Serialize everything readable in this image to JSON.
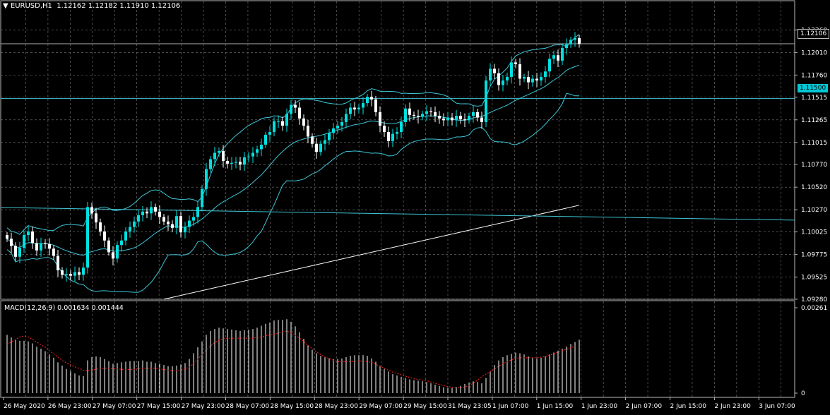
{
  "header": {
    "triangle": "▼",
    "symbol": "EURUSD,H1",
    "ohlc": "1.12162 1.12182 1.11910 1.12106"
  },
  "macd_header": "MACD(12,26,9) 0.001634 0.001444",
  "price_tags": {
    "bid": "1.12106",
    "level": "1.11500"
  },
  "colors": {
    "bg": "#000000",
    "grid": "#7a7a7a",
    "bull": "#00e0e0",
    "bear": "#ffffff",
    "bands": "#3ec6d6",
    "ma": "#ffffff",
    "signal": "#ff2020",
    "hist": "#ffffff"
  },
  "chart_data": [
    {
      "type": "candlestick",
      "symbol": "EURUSD",
      "timeframe": "H1",
      "ylim": [
        1.0928,
        1.1245
      ],
      "y_ticks": [
        "1.12260",
        "1.12010",
        "1.11760",
        "1.11515",
        "1.11265",
        "1.11015",
        "1.10770",
        "1.10520",
        "1.10270",
        "1.10025",
        "1.09775",
        "1.09525",
        "1.09280"
      ],
      "x_labels": [
        "26 May 2020",
        "26 May 23:00",
        "27 May 07:00",
        "27 May 15:00",
        "27 May 23:00",
        "28 May 07:00",
        "28 May 15:00",
        "28 May 23:00",
        "29 May 07:00",
        "29 May 15:00",
        "31 May 23:05",
        "1 Jun 07:00",
        "1 Jun 15:00",
        "1 Jun 23:00",
        "2 Jun 07:00",
        "2 Jun 15:00",
        "2 Jun 23:00",
        "3 Jun 07:00"
      ],
      "close": [
        1.0995,
        1.0987,
        1.0975,
        1.0985,
        1.0999,
        1.1003,
        1.099,
        1.0982,
        1.099,
        1.0989,
        1.0984,
        1.0976,
        1.096,
        1.0955,
        1.0956,
        1.0954,
        1.0958,
        1.0955,
        1.0963,
        1.103,
        1.1023,
        1.1013,
        1.1003,
        1.0993,
        1.098,
        1.0973,
        1.0988,
        1.0993,
        1.1003,
        1.1008,
        1.1014,
        1.1021,
        1.1025,
        1.1023,
        1.103,
        1.1025,
        1.1019,
        1.1014,
        1.1011,
        1.1007,
        1.102,
        1.1002,
        1.1008,
        1.1015,
        1.1019,
        1.103,
        1.105,
        1.1072,
        1.1083,
        1.109,
        1.1092,
        1.1081,
        1.1078,
        1.1079,
        1.108,
        1.1077,
        1.1085,
        1.1086,
        1.109,
        1.1094,
        1.1099,
        1.111,
        1.1113,
        1.1125,
        1.1125,
        1.112,
        1.1133,
        1.1143,
        1.114,
        1.1128,
        1.112,
        1.1108,
        1.11,
        1.1091,
        1.11,
        1.1104,
        1.1112,
        1.1117,
        1.112,
        1.1124,
        1.1133,
        1.114,
        1.1138,
        1.114,
        1.1145,
        1.1152,
        1.1149,
        1.1135,
        1.112,
        1.1113,
        1.1103,
        1.1111,
        1.1113,
        1.1124,
        1.1139,
        1.1132,
        1.1131,
        1.113,
        1.1133,
        1.1136,
        1.1135,
        1.1131,
        1.1128,
        1.1126,
        1.1129,
        1.1126,
        1.1131,
        1.1127,
        1.1126,
        1.1131,
        1.1135,
        1.1129,
        1.1124,
        1.117,
        1.1183,
        1.1178,
        1.1165,
        1.117,
        1.1174,
        1.119,
        1.1188,
        1.1172,
        1.1174,
        1.1168,
        1.1172,
        1.117,
        1.1174,
        1.118,
        1.1194,
        1.1198,
        1.1192,
        1.1206,
        1.121,
        1.1215,
        1.1217,
        1.12106
      ],
      "bollinger_window": 20,
      "moving_average": {
        "period": 200,
        "start": 1.0928,
        "end": 1.1032,
        "color": "#ffffff"
      },
      "horizontal_lines": [
        {
          "price": 1.12106,
          "label": "1.12106"
        },
        {
          "price": 1.115,
          "label": "1.11500"
        }
      ],
      "trendline": {
        "from": 1.10295,
        "to": 1.10155
      }
    },
    {
      "type": "bar",
      "title": "MACD(12,26,9) 0.001634 0.001444",
      "macd_value": 0.001634,
      "signal_value": 0.001444,
      "y_ticks": [
        "0.00261",
        "0"
      ],
      "ylim": [
        0,
        0.00261
      ],
      "macd_histogram": [
        0.00178,
        0.0017,
        0.00162,
        0.0016,
        0.0016,
        0.00158,
        0.00152,
        0.00142,
        0.00136,
        0.00128,
        0.00118,
        0.00108,
        0.00094,
        0.00084,
        0.00074,
        0.00068,
        0.0006,
        0.00054,
        0.00052,
        0.001,
        0.0011,
        0.00112,
        0.0011,
        0.00104,
        0.00098,
        0.0009,
        0.00092,
        0.00094,
        0.00096,
        0.00098,
        0.00098,
        0.00098,
        0.001,
        0.00096,
        0.00096,
        0.00092,
        0.0009,
        0.00086,
        0.00082,
        0.00082,
        0.00084,
        0.00088,
        0.00092,
        0.00104,
        0.00122,
        0.0014,
        0.00158,
        0.00178,
        0.0019,
        0.00196,
        0.002,
        0.00198,
        0.00196,
        0.00194,
        0.00192,
        0.0019,
        0.00192,
        0.00194,
        0.00196,
        0.002,
        0.00206,
        0.00212,
        0.00216,
        0.00222,
        0.00224,
        0.00224,
        0.00226,
        0.00218,
        0.00204,
        0.00186,
        0.00166,
        0.00146,
        0.00132,
        0.00122,
        0.00114,
        0.0011,
        0.00106,
        0.00104,
        0.00104,
        0.00106,
        0.0011,
        0.00114,
        0.00116,
        0.00116,
        0.00116,
        0.00114,
        0.00106,
        0.00096,
        0.00084,
        0.00074,
        0.00066,
        0.00058,
        0.00054,
        0.0005,
        0.00046,
        0.00042,
        0.0004,
        0.00038,
        0.00036,
        0.00034,
        0.0003,
        0.00026,
        0.00022,
        0.00018,
        0.00016,
        0.00016,
        0.00018,
        0.00022,
        0.00028,
        0.00032,
        0.00036,
        0.00034,
        0.0003,
        0.00046,
        0.00066,
        0.00086,
        0.001,
        0.0011,
        0.00116,
        0.0012,
        0.00124,
        0.00122,
        0.00118,
        0.00112,
        0.00108,
        0.00106,
        0.00108,
        0.00112,
        0.00118,
        0.00124,
        0.0013,
        0.00136,
        0.00142,
        0.0015,
        0.00156,
        0.00163
      ],
      "signal_line": [
        0.0015,
        0.00156,
        0.00164,
        0.00172,
        0.00175,
        0.00172,
        0.00164,
        0.00156,
        0.00148,
        0.0014,
        0.0013,
        0.0012,
        0.0011,
        0.001,
        0.00092,
        0.00086,
        0.0008,
        0.00076,
        0.0007,
        0.00068,
        0.0007,
        0.00073,
        0.00075,
        0.00076,
        0.00076,
        0.00075,
        0.00074,
        0.00073,
        0.00072,
        0.00072,
        0.00073,
        0.00075,
        0.00076,
        0.00076,
        0.00076,
        0.00076,
        0.00074,
        0.00072,
        0.0007,
        0.00068,
        0.00068,
        0.0007,
        0.00074,
        0.0008,
        0.0009,
        0.00104,
        0.00118,
        0.00132,
        0.00144,
        0.00154,
        0.00162,
        0.00166,
        0.00168,
        0.00168,
        0.00168,
        0.00168,
        0.00168,
        0.00168,
        0.00168,
        0.0017,
        0.00172,
        0.00175,
        0.00178,
        0.0018,
        0.00184,
        0.00188,
        0.0019,
        0.00184,
        0.00176,
        0.00168,
        0.00158,
        0.00146,
        0.00136,
        0.00126,
        0.00118,
        0.0011,
        0.00106,
        0.001,
        0.00096,
        0.00096,
        0.00096,
        0.00096,
        0.00098,
        0.00098,
        0.00098,
        0.00096,
        0.00094,
        0.00088,
        0.00082,
        0.00076,
        0.0007,
        0.00064,
        0.0006,
        0.00056,
        0.00052,
        0.00048,
        0.00044,
        0.00042,
        0.0004,
        0.00038,
        0.00034,
        0.0003,
        0.00026,
        0.00024,
        0.0002,
        0.00018,
        0.00016,
        0.00016,
        0.00018,
        0.00024,
        0.0003,
        0.0004,
        0.0005,
        0.00058,
        0.00066,
        0.00074,
        0.00082,
        0.0009,
        0.00096,
        0.00102,
        0.00106,
        0.00108,
        0.00108,
        0.00108,
        0.00108,
        0.00108,
        0.0011,
        0.00112,
        0.00116,
        0.0012,
        0.00126,
        0.0013,
        0.00134,
        0.00138,
        0.00144
      ]
    }
  ]
}
